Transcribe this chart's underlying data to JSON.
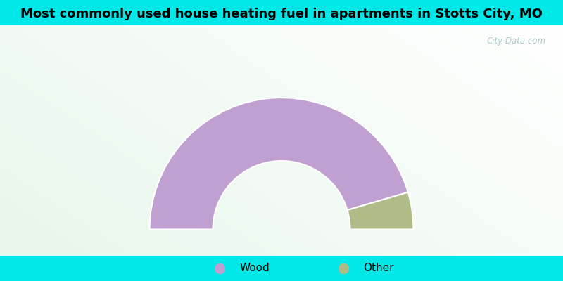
{
  "title": "Most commonly used house heating fuel in apartments in Stotts City, MO",
  "title_fontsize": 13,
  "slices": [
    {
      "label": "Wood",
      "value": 90.9,
      "color": "#c0a0d0"
    },
    {
      "label": "Other",
      "value": 9.1,
      "color": "#b0bc88"
    }
  ],
  "background_cyan": "#00e8e8",
  "watermark": "City-Data.com",
  "outer_r": 1.0,
  "inner_r": 0.52
}
